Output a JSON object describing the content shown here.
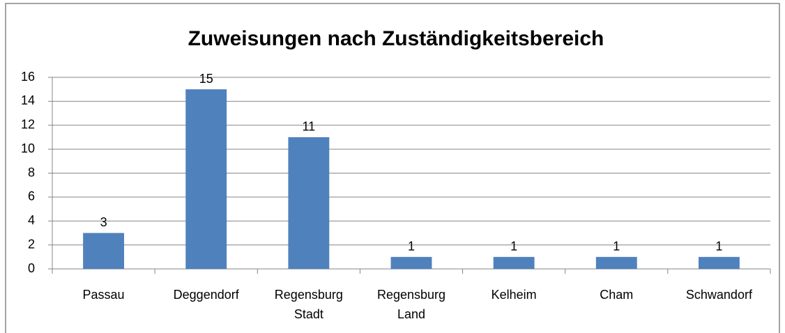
{
  "chart_data": {
    "type": "bar",
    "title": "Zuweisungen nach Zuständigkeitsbereich",
    "categories": [
      "Passau",
      "Deggendorf",
      "Regensburg Stadt",
      "Regensburg Land",
      "Kelheim",
      "Cham",
      "Schwandorf"
    ],
    "values": [
      3,
      15,
      11,
      1,
      1,
      1,
      1
    ],
    "color": "#4f81bd",
    "ylim": [
      0,
      16
    ],
    "yticks": [
      0,
      2,
      4,
      6,
      8,
      10,
      12,
      14,
      16
    ],
    "grid": true
  }
}
